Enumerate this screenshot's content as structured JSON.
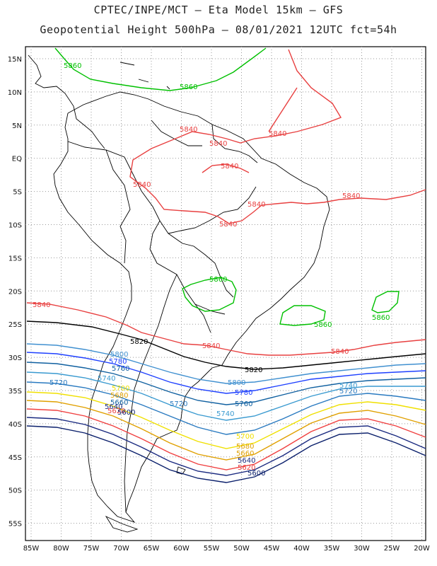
{
  "header": {
    "title_line1": "CPTEC/INPE/MCT –  Eta Model 15km – GFS",
    "title_line2": "Geopotential Height 500hPa – 08/01/2021 12UTC fct=54h"
  },
  "axes": {
    "lat_labels": [
      "15N",
      "10N",
      "5N",
      "EQ",
      "5S",
      "10S",
      "15S",
      "20S",
      "25S",
      "30S",
      "35S",
      "40S",
      "45S",
      "50S",
      "55S"
    ],
    "lon_labels": [
      "85W",
      "80W",
      "75W",
      "70W",
      "65W",
      "60W",
      "55W",
      "50W",
      "45W",
      "40W",
      "35W",
      "30W",
      "25W",
      "20W"
    ],
    "grid": "dotted"
  },
  "colors": {
    "c5880": "#00c000",
    "c5860": "#00c000",
    "c5840": "#e84040",
    "c5820": "#000000",
    "c5800": "#4090d0",
    "c5780": "#1e40ff",
    "c5760": "#1060a0",
    "c5740": "#3a9ad0",
    "c5720": "#2a7ac0",
    "c5700": "#f0e000",
    "c5680": "#e0a000",
    "c5660": "#f04040",
    "c5640": "#0a1f6b",
    "c5620": "#1a2a80",
    "land": "#000000",
    "grid": "#999999"
  },
  "contour_labels": [
    {
      "text": "5860",
      "color": "#00c000"
    },
    {
      "text": "5860",
      "color": "#00c000"
    },
    {
      "text": "5860",
      "color": "#00c000"
    },
    {
      "text": "5860",
      "color": "#00c000"
    },
    {
      "text": "5860",
      "color": "#00c000"
    },
    {
      "text": "5840",
      "color": "#e84040"
    },
    {
      "text": "5840",
      "color": "#e84040"
    },
    {
      "text": "5840",
      "color": "#e84040"
    },
    {
      "text": "5840",
      "color": "#e84040"
    },
    {
      "text": "5840",
      "color": "#e84040"
    },
    {
      "text": "5840",
      "color": "#e84040"
    },
    {
      "text": "5840",
      "color": "#e84040"
    },
    {
      "text": "5840",
      "color": "#e84040"
    },
    {
      "text": "5840",
      "color": "#e84040"
    },
    {
      "text": "5840",
      "color": "#e84040"
    },
    {
      "text": "5840",
      "color": "#e84040"
    },
    {
      "text": "5820",
      "color": "#000000"
    },
    {
      "text": "5820",
      "color": "#000000"
    },
    {
      "text": "5800",
      "color": "#4090d0"
    },
    {
      "text": "5800",
      "color": "#4090d0"
    },
    {
      "text": "5780",
      "color": "#1e40ff"
    },
    {
      "text": "5780",
      "color": "#1e40ff"
    },
    {
      "text": "5760",
      "color": "#1060a0"
    },
    {
      "text": "5760",
      "color": "#1060a0"
    },
    {
      "text": "5740",
      "color": "#3a9ad0"
    },
    {
      "text": "5740",
      "color": "#3a9ad0"
    },
    {
      "text": "5740",
      "color": "#3a9ad0"
    },
    {
      "text": "5720",
      "color": "#2a7ac0"
    },
    {
      "text": "5720",
      "color": "#2a7ac0"
    },
    {
      "text": "5720",
      "color": "#2a7ac0"
    },
    {
      "text": "5700",
      "color": "#f0e000"
    },
    {
      "text": "5700",
      "color": "#f0e000"
    },
    {
      "text": "5680",
      "color": "#e0a000"
    },
    {
      "text": "5680",
      "color": "#e0a000"
    },
    {
      "text": "5660",
      "color": "#1060a0"
    },
    {
      "text": "5660",
      "color": "#e0a000"
    },
    {
      "text": "5640",
      "color": "#1a2a80"
    },
    {
      "text": "5640",
      "color": "#1a2a80"
    },
    {
      "text": "5620",
      "color": "#e84040"
    },
    {
      "text": "5620",
      "color": "#e84040"
    },
    {
      "text": "5600",
      "color": "#0a1f6b"
    },
    {
      "text": "5600",
      "color": "#0a1f6b"
    }
  ]
}
